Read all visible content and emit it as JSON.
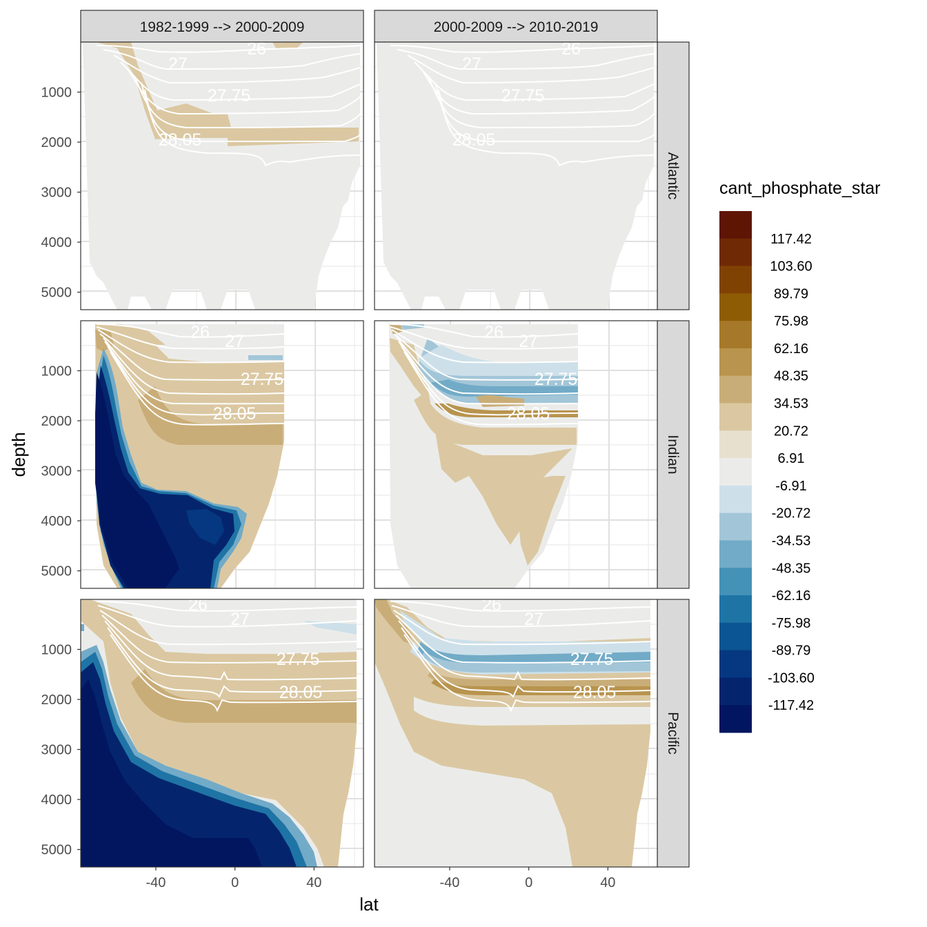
{
  "chart_data": {
    "type": "heatmap",
    "title": "",
    "xlabel": "lat",
    "ylabel": "depth",
    "xlim": [
      -78,
      65
    ],
    "ylim": [
      5350,
      0
    ],
    "x_ticks": [
      -40,
      0,
      40
    ],
    "y_ticks": [
      1000,
      2000,
      3000,
      4000,
      5000
    ],
    "x_tick_labels": [
      "-40",
      "0",
      "40"
    ],
    "y_tick_labels": [
      "1000",
      "2000",
      "3000",
      "4000",
      "5000"
    ],
    "columns": [
      "1982-1999 --> 2000-2009",
      "2000-2009 --> 2010-2019"
    ],
    "rows": [
      "Atlantic",
      "Indian",
      "Pacific"
    ],
    "legend": {
      "title": "cant_phosphate_star",
      "placement": "right",
      "breaks": [
        "117.42",
        "103.60",
        "89.79",
        "75.98",
        "62.16",
        "48.35",
        "34.53",
        "20.72",
        "6.91",
        "-6.91",
        "-20.72",
        "-34.53",
        "-48.35",
        "-62.16",
        "-75.98",
        "-89.79",
        "-103.60",
        "-117.42"
      ],
      "colors": [
        "#5e1503",
        "#6f2a05",
        "#7f4203",
        "#8f5c06",
        "#a6792a",
        "#b8944e",
        "#c9ad78",
        "#dbc8a2",
        "#e8e0cf",
        "#ebecea",
        "#cde0ea",
        "#a2c6d8",
        "#72abc7",
        "#4592b7",
        "#1f74a6",
        "#0a5592",
        "#053880",
        "#04256d",
        "#021660"
      ]
    },
    "contour_labels": [
      "26",
      "27",
      "27.75",
      "28.05"
    ],
    "panels": [
      {
        "row": "Atlantic",
        "col": 0,
        "description_level": "near-zero with 20.72 band at 1300-2100m"
      },
      {
        "row": "Atlantic",
        "col": 1,
        "description_level": "near-zero everywhere"
      },
      {
        "row": "Indian",
        "col": 0,
        "description_level": "positive upper ocean, strong negative (<-117.42) south of -45"
      },
      {
        "row": "Indian",
        "col": 1,
        "description_level": "negative band 800-1500m, positive 1700-2000m"
      },
      {
        "row": "Pacific",
        "col": 0,
        "description_level": "positive 1000-2600m, strong negative deep south"
      },
      {
        "row": "Pacific",
        "col": 1,
        "description_level": "negative band 800-1500m, positive 1700-2000m"
      }
    ]
  }
}
